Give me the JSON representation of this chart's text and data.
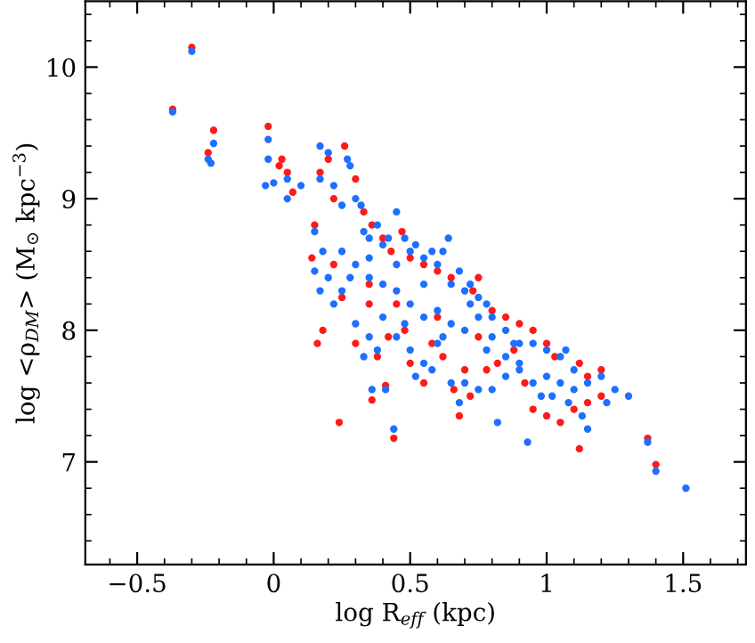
{
  "chart_data": {
    "type": "scatter",
    "xlabel": "log R$_{eff}$ (kpc)",
    "ylabel": "log <ρ$_{DM}$> (M$_{⊙}$ kpc$^{−3}$)",
    "xlim": [
      -0.69,
      1.73
    ],
    "ylim": [
      6.22,
      10.5
    ],
    "xticks": [
      {
        "value": -0.5,
        "label": "−0.5"
      },
      0,
      0.5,
      1,
      1.5
    ],
    "yticks": [
      7,
      8,
      9,
      10
    ],
    "grid": false,
    "marker": "circle",
    "series": [
      {
        "color": "#ff1a1a",
        "x": [
          -0.37,
          -0.3,
          -0.24,
          -0.22,
          -0.02,
          0.02,
          0.03,
          0.05,
          0.07,
          0.17,
          0.15,
          0.18,
          0.16,
          0.14,
          0.24,
          0.44,
          0.36,
          0.41,
          1.4,
          1.37,
          1.2,
          0.2,
          0.22,
          0.26,
          0.3,
          0.33,
          0.36,
          0.4,
          0.43,
          0.47,
          0.5,
          0.55,
          0.6,
          0.65,
          0.73,
          0.75,
          0.8,
          0.85,
          0.9,
          0.95,
          1.0,
          1.03,
          1.12,
          1.15,
          1.2,
          0.22,
          0.25,
          0.3,
          0.35,
          0.38,
          0.42,
          0.48,
          0.5,
          0.55,
          0.58,
          0.62,
          0.66,
          0.7,
          0.72,
          0.78,
          0.82,
          0.88,
          0.95,
          1.0,
          1.05,
          1.1,
          1.12,
          1.15,
          0.68,
          0.6,
          0.45,
          0.35,
          0.75,
          0.92
        ],
        "values": [
          9.68,
          10.15,
          9.35,
          9.52,
          9.55,
          9.25,
          9.3,
          9.2,
          9.05,
          9.2,
          8.8,
          8.0,
          7.9,
          8.55,
          7.3,
          7.18,
          7.47,
          7.58,
          6.98,
          7.18,
          7.5,
          9.3,
          9.0,
          9.4,
          9.15,
          8.9,
          8.8,
          8.7,
          8.6,
          8.75,
          8.55,
          8.5,
          8.45,
          8.4,
          8.3,
          8.4,
          8.15,
          8.1,
          8.05,
          8.0,
          7.9,
          7.8,
          7.75,
          7.65,
          7.7,
          8.5,
          8.25,
          7.9,
          8.2,
          7.8,
          7.95,
          8.0,
          7.75,
          7.6,
          7.9,
          7.8,
          7.55,
          7.7,
          7.5,
          7.7,
          7.75,
          7.85,
          7.4,
          7.35,
          7.3,
          7.4,
          7.1,
          7.45,
          7.35,
          8.1,
          8.2,
          8.35,
          7.95,
          7.6
        ]
      },
      {
        "color": "#1f6fff",
        "x": [
          -0.37,
          -0.3,
          -0.24,
          -0.22,
          -0.23,
          -0.02,
          -0.02,
          -0.03,
          0.0,
          0.05,
          0.05,
          0.1,
          0.17,
          0.17,
          0.15,
          0.15,
          0.17,
          0.18,
          0.44,
          0.36,
          0.41,
          1.51,
          1.4,
          1.37,
          1.3,
          1.22,
          0.2,
          0.22,
          0.25,
          0.27,
          0.28,
          0.3,
          0.32,
          0.33,
          0.35,
          0.38,
          0.4,
          0.42,
          0.45,
          0.48,
          0.5,
          0.52,
          0.55,
          0.58,
          0.6,
          0.62,
          0.64,
          0.68,
          0.7,
          0.72,
          0.75,
          0.78,
          0.8,
          0.85,
          0.9,
          0.95,
          1.0,
          1.05,
          1.1,
          1.15,
          1.2,
          0.2,
          0.22,
          0.25,
          0.3,
          0.33,
          0.35,
          0.38,
          0.4,
          0.45,
          0.5,
          0.52,
          0.55,
          0.58,
          0.6,
          0.65,
          0.68,
          0.7,
          0.75,
          0.8,
          0.82,
          0.85,
          0.9,
          0.93,
          0.98,
          1.02,
          1.08,
          1.13,
          1.15,
          1.25,
          0.25,
          0.3,
          0.35,
          0.4,
          0.45,
          0.5,
          0.55,
          0.6,
          0.65,
          0.7,
          0.72,
          0.75,
          0.8,
          0.85,
          0.9,
          0.95,
          1.0,
          1.05,
          1.1,
          0.65,
          0.55,
          0.45,
          0.35,
          0.28,
          0.48,
          0.62,
          0.78,
          0.88,
          1.07
        ],
        "values": [
          9.66,
          10.12,
          9.3,
          9.42,
          9.27,
          9.45,
          9.3,
          9.1,
          9.12,
          9.15,
          9.0,
          9.1,
          9.4,
          9.15,
          8.75,
          8.45,
          8.3,
          8.6,
          7.25,
          7.55,
          7.55,
          6.8,
          6.93,
          7.15,
          7.5,
          7.45,
          9.35,
          9.1,
          8.95,
          9.3,
          9.25,
          9.0,
          8.95,
          8.75,
          8.7,
          8.8,
          8.65,
          8.7,
          8.9,
          8.7,
          8.6,
          8.65,
          8.55,
          8.6,
          8.5,
          8.6,
          8.7,
          8.45,
          8.3,
          8.35,
          8.25,
          8.2,
          8.1,
          8.0,
          7.9,
          7.9,
          7.85,
          7.8,
          7.7,
          7.6,
          7.65,
          8.4,
          8.2,
          8.3,
          8.05,
          7.8,
          7.95,
          7.85,
          8.1,
          7.95,
          7.85,
          7.65,
          7.75,
          7.7,
          7.9,
          7.6,
          7.45,
          7.6,
          7.55,
          7.55,
          7.3,
          7.65,
          7.7,
          7.15,
          7.5,
          7.5,
          7.45,
          7.35,
          7.25,
          7.55,
          8.6,
          8.5,
          8.4,
          8.35,
          8.3,
          8.2,
          8.1,
          8.15,
          8.05,
          8.0,
          8.2,
          8.1,
          7.95,
          7.8,
          7.75,
          7.6,
          7.65,
          7.6,
          7.55,
          8.35,
          8.35,
          8.5,
          8.55,
          8.4,
          8.05,
          7.95,
          7.85,
          7.9,
          7.85
        ]
      }
    ]
  }
}
